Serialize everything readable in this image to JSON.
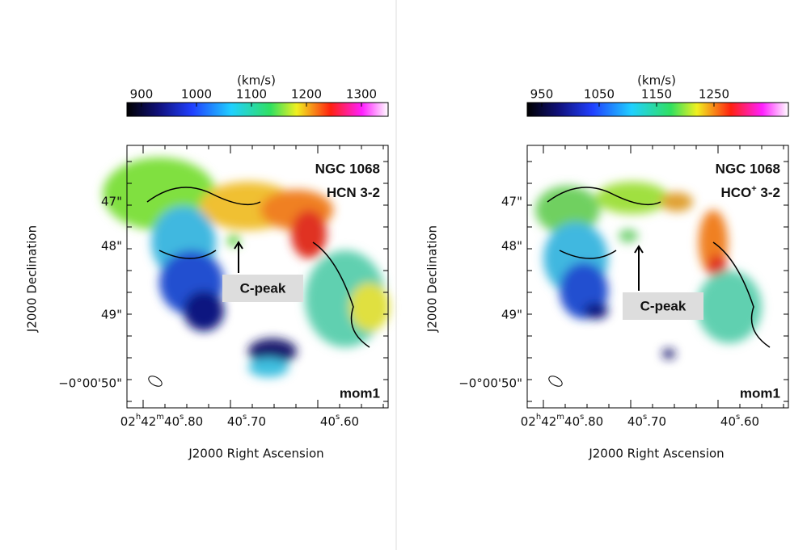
{
  "panels": [
    {
      "colorbar": {
        "unit": "(km/s)",
        "ticks": [
          "900",
          "1000",
          "1100",
          "1200",
          "1300"
        ]
      },
      "source": "NGC 1068",
      "line": [
        "HCN 3-2"
      ],
      "moment": "mom1",
      "annotation": "C-peak",
      "y_ticks": [
        "47\"",
        "48\"",
        "49\"",
        "−0°00'50\""
      ],
      "x_ticks": [
        [
          "02",
          "h",
          "42",
          "m",
          "40",
          "s",
          ".80"
        ],
        [
          "40",
          "s",
          ".70"
        ],
        [
          "40",
          "s",
          ".60"
        ]
      ],
      "x_label": "J2000 Right Ascension",
      "y_label": "J2000 Declination"
    },
    {
      "colorbar": {
        "unit": "(km/s)",
        "ticks": [
          "950",
          "1050",
          "1150",
          "1250"
        ]
      },
      "source": "NGC 1068",
      "line": [
        "HCO",
        "+",
        " 3-2"
      ],
      "moment": "mom1",
      "annotation": "C-peak",
      "y_ticks": [
        "47\"",
        "48\"",
        "49\"",
        "−0°00'50\""
      ],
      "x_ticks": [
        [
          "02",
          "h",
          "42",
          "m",
          "40",
          "s",
          ".80"
        ],
        [
          "40",
          "s",
          ".70"
        ],
        [
          "40",
          "s",
          ".60"
        ]
      ],
      "x_label": "J2000 Right Ascension",
      "y_label": "J2000 Declination"
    }
  ]
}
